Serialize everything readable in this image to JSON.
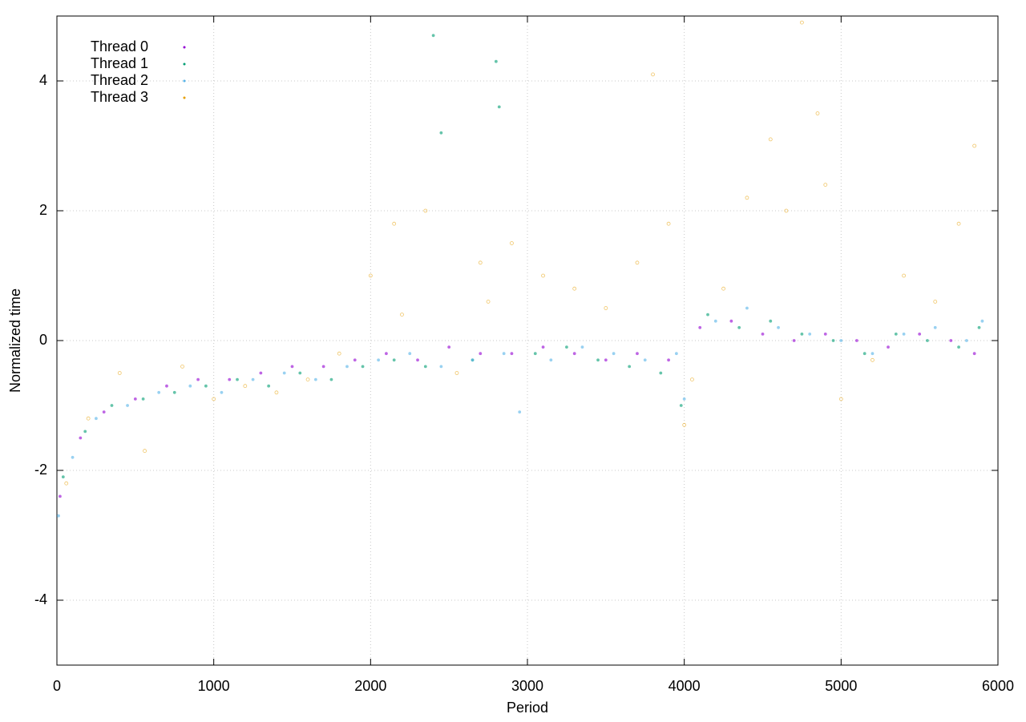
{
  "chart_data": {
    "type": "scatter",
    "x_label": "Period",
    "y_label": "Normalized time",
    "xlim": [
      0,
      6000
    ],
    "ylim": [
      -5,
      5
    ],
    "xticks": [
      0,
      1000,
      2000,
      3000,
      4000,
      5000,
      6000
    ],
    "yticks": [
      -4,
      -2,
      0,
      2,
      4
    ],
    "grid": true,
    "legend_position": "upper-left",
    "series": [
      {
        "name": "Thread 0",
        "color": "#9400d3",
        "x": [
          20,
          150,
          300,
          500,
          700,
          900,
          1100,
          1300,
          1500,
          1700,
          1900,
          2100,
          2300,
          2500,
          2700,
          2900,
          3100,
          3300,
          3500,
          3700,
          3900,
          4100,
          4300,
          4500,
          4700,
          4900,
          5100,
          5300,
          5500,
          5700,
          5850
        ],
        "y": [
          -2.4,
          -1.5,
          -1.1,
          -0.9,
          -0.7,
          -0.6,
          -0.6,
          -0.5,
          -0.4,
          -0.4,
          -0.3,
          -0.2,
          -0.3,
          -0.1,
          -0.2,
          -0.2,
          -0.1,
          -0.2,
          -0.3,
          -0.2,
          -0.3,
          0.2,
          0.3,
          0.1,
          0.0,
          0.1,
          0.0,
          -0.1,
          0.1,
          0.0,
          -0.2
        ]
      },
      {
        "name": "Thread 1",
        "color": "#009e73",
        "x": [
          40,
          180,
          350,
          550,
          750,
          950,
          1150,
          1350,
          1550,
          1750,
          1950,
          2150,
          2350,
          2400,
          2450,
          2650,
          2800,
          2820,
          3050,
          3250,
          3450,
          3650,
          3850,
          3980,
          4150,
          4350,
          4550,
          4750,
          4950,
          5150,
          5350,
          5550,
          5750,
          5880
        ],
        "y": [
          -2.1,
          -1.4,
          -1.0,
          -0.9,
          -0.8,
          -0.7,
          -0.6,
          -0.7,
          -0.5,
          -0.6,
          -0.4,
          -0.3,
          -0.4,
          4.7,
          3.2,
          -0.3,
          4.3,
          3.6,
          -0.2,
          -0.1,
          -0.3,
          -0.4,
          -0.5,
          -1.0,
          0.4,
          0.2,
          0.3,
          0.1,
          0.0,
          -0.2,
          0.1,
          0.0,
          -0.1,
          0.2
        ]
      },
      {
        "name": "Thread 2",
        "color": "#56b4e9",
        "x": [
          10,
          100,
          250,
          450,
          650,
          850,
          1050,
          1250,
          1450,
          1650,
          1850,
          2050,
          2250,
          2450,
          2650,
          2850,
          2950,
          3150,
          3350,
          3550,
          3750,
          3950,
          4000,
          4200,
          4400,
          4600,
          4800,
          5000,
          5200,
          5400,
          5600,
          5800,
          5900
        ],
        "y": [
          -2.7,
          -1.8,
          -1.2,
          -1.0,
          -0.8,
          -0.7,
          -0.8,
          -0.6,
          -0.5,
          -0.6,
          -0.4,
          -0.3,
          -0.2,
          -0.4,
          -0.3,
          -0.2,
          -1.1,
          -0.3,
          -0.1,
          -0.2,
          -0.3,
          -0.2,
          -0.9,
          0.3,
          0.5,
          0.2,
          0.1,
          0.0,
          -0.2,
          0.1,
          0.2,
          0.0,
          0.3
        ]
      },
      {
        "name": "Thread 3",
        "color": "#e69f00",
        "x": [
          60,
          200,
          400,
          560,
          800,
          1000,
          1200,
          1400,
          1600,
          1800,
          2000,
          2150,
          2200,
          2350,
          2550,
          2700,
          2750,
          2900,
          3100,
          3300,
          3500,
          3700,
          3800,
          3900,
          4000,
          4050,
          4250,
          4400,
          4550,
          4650,
          4750,
          4850,
          4900,
          5000,
          5200,
          5400,
          5600,
          5750,
          5850
        ],
        "y": [
          -2.2,
          -1.2,
          -0.5,
          -1.7,
          -0.4,
          -0.9,
          -0.7,
          -0.8,
          -0.6,
          -0.2,
          1.0,
          1.8,
          0.4,
          2.0,
          -0.5,
          1.2,
          0.6,
          1.5,
          1.0,
          0.8,
          0.5,
          1.2,
          4.1,
          1.8,
          -1.3,
          -0.6,
          0.8,
          2.2,
          3.1,
          2.0,
          4.9,
          3.5,
          2.4,
          -0.9,
          -0.3,
          1.0,
          0.6,
          1.8,
          3.0
        ]
      }
    ]
  }
}
